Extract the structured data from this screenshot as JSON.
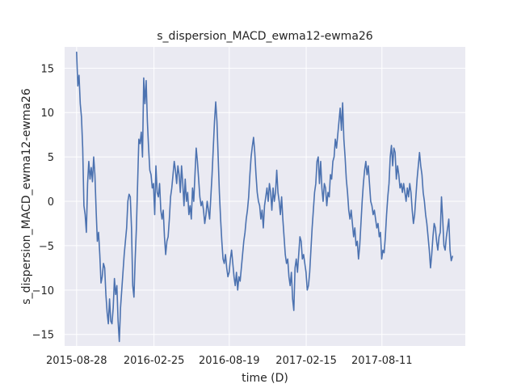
{
  "chart_data": {
    "type": "line",
    "title": "s_dispersion_MACD_ewma12-ewma26",
    "xlabel": "time (D)",
    "ylabel": "s_dispersion_MACD_ewma12-ewma26",
    "x_start": "2015-08-28",
    "x_end": "2018-01-23",
    "xlim": [
      "2015-07-31",
      "2018-02-22"
    ],
    "ylim": [
      -16.3,
      17.4
    ],
    "x_ticks": [
      "2015-08-28",
      "2016-02-25",
      "2016-08-19",
      "2017-02-15",
      "2017-08-11"
    ],
    "y_ticks": [
      -15,
      -10,
      -5,
      0,
      5,
      10,
      15
    ],
    "grid": true,
    "background": "#eaeaf2",
    "series": [
      {
        "color": "#4c72b0",
        "values": [
          16.8,
          13.0,
          14.2,
          11.0,
          9.5,
          6.0,
          -0.5,
          -1.5,
          -3.5,
          2.0,
          4.5,
          2.5,
          3.8,
          2.2,
          5.0,
          3.0,
          -1.0,
          -4.5,
          -3.5,
          -6.0,
          -9.2,
          -8.5,
          -7.0,
          -7.5,
          -10.5,
          -12.5,
          -13.8,
          -11.0,
          -13.5,
          -13.8,
          -12.0,
          -8.7,
          -10.5,
          -9.5,
          -13.5,
          -15.8,
          -12.0,
          -10.0,
          -8.0,
          -6.0,
          -4.5,
          -3.0,
          0.0,
          0.8,
          0.5,
          -3.0,
          -9.5,
          -10.8,
          -6.5,
          -3.0,
          2.0,
          7.0,
          6.5,
          7.8,
          5.0,
          13.9,
          11.0,
          13.6,
          9.0,
          6.0,
          3.5,
          3.0,
          1.5,
          2.0,
          -1.5,
          4.0,
          1.0,
          0.5,
          2.0,
          -1.0,
          -2.0,
          -1.0,
          -4.0,
          -6.0,
          -4.5,
          -4.0,
          -2.0,
          0.5,
          1.5,
          3.0,
          4.5,
          3.5,
          2.0,
          4.0,
          3.0,
          1.0,
          4.0,
          2.0,
          -0.5,
          2.5,
          0.0,
          1.0,
          -1.5,
          -0.5,
          -2.0,
          1.5,
          0.0,
          3.0,
          6.0,
          4.5,
          2.5,
          0.5,
          -0.5,
          0.0,
          -1.0,
          -2.5,
          -1.5,
          0.0,
          -1.0,
          -2.0,
          0.5,
          3.0,
          6.0,
          9.0,
          11.2,
          9.0,
          5.0,
          1.0,
          -2.0,
          -4.5,
          -6.5,
          -7.0,
          -6.0,
          -7.5,
          -8.5,
          -8.0,
          -6.5,
          -5.5,
          -7.0,
          -8.5,
          -9.5,
          -8.0,
          -10.0,
          -8.5,
          -9.0,
          -7.5,
          -6.0,
          -4.5,
          -3.5,
          -2.0,
          -1.0,
          0.5,
          3.0,
          5.0,
          6.2,
          7.2,
          5.5,
          3.0,
          1.0,
          0.0,
          -0.5,
          -2.0,
          -1.0,
          -3.0,
          -0.5,
          0.5,
          1.5,
          0.0,
          2.0,
          1.0,
          -1.0,
          1.5,
          0.0,
          1.0,
          3.5,
          1.0,
          0.0,
          -1.5,
          0.5,
          -2.0,
          -4.0,
          -6.0,
          -7.0,
          -6.5,
          -8.5,
          -9.5,
          -8.0,
          -11.0,
          -12.3,
          -7.5,
          -6.5,
          -8.0,
          -6.0,
          -4.0,
          -4.5,
          -6.5,
          -6.0,
          -7.0,
          -8.0,
          -10.0,
          -9.5,
          -8.0,
          -5.5,
          -3.0,
          -1.0,
          1.0,
          2.0,
          4.5,
          5.0,
          2.0,
          4.5,
          1.5,
          0.0,
          2.0,
          1.5,
          -0.5,
          1.0,
          0.5,
          3.0,
          2.5,
          4.5,
          5.0,
          7.0,
          6.0,
          7.5,
          9.0,
          10.5,
          8.0,
          11.1,
          7.0,
          5.0,
          2.5,
          1.0,
          -1.0,
          -2.0,
          -1.0,
          -2.5,
          -4.0,
          -3.0,
          -5.0,
          -4.5,
          -6.5,
          -5.0,
          -2.5,
          0.0,
          2.0,
          3.5,
          4.5,
          3.0,
          4.0,
          2.0,
          0.0,
          -0.5,
          -1.5,
          -1.0,
          -2.0,
          -3.0,
          -2.5,
          -4.0,
          -3.5,
          -6.5,
          -5.5,
          -5.8,
          -4.0,
          -1.5,
          0.5,
          2.0,
          5.0,
          6.3,
          4.0,
          6.0,
          5.5,
          2.5,
          4.0,
          3.0,
          1.5,
          2.0,
          1.0,
          2.0,
          1.0,
          0.0,
          1.5,
          0.5,
          2.0,
          1.0,
          -1.0,
          -2.5,
          -1.5,
          0.5,
          2.5,
          4.0,
          5.5,
          4.0,
          3.0,
          1.0,
          0.0,
          -1.5,
          -2.5,
          -4.0,
          -5.5,
          -7.5,
          -6.0,
          -4.0,
          -2.5,
          -3.0,
          -4.5,
          -5.5,
          -4.0,
          -3.5,
          0.5,
          -2.0,
          -5.0,
          -5.5,
          -4.0,
          -3.0,
          -2.0,
          -5.5,
          -6.7,
          -6.2
        ]
      }
    ]
  }
}
